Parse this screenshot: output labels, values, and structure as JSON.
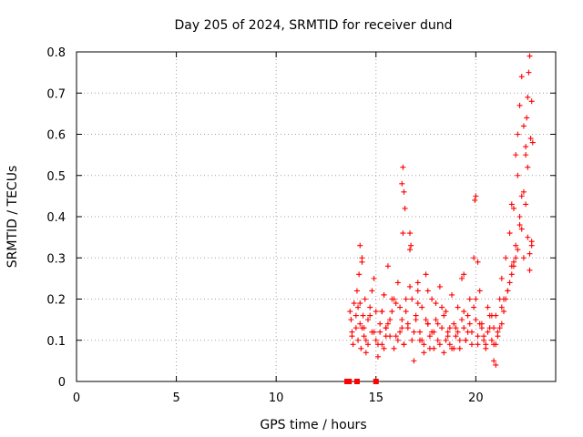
{
  "chart_data": {
    "type": "scatter",
    "title": "Day 205 of 2024, SRMTID for receiver dund",
    "xlabel": "GPS time / hours",
    "ylabel": "SRMTID / TECUs",
    "xlim": [
      0,
      24
    ],
    "ylim": [
      0,
      0.8
    ],
    "xticks": [
      0,
      5,
      10,
      15,
      20
    ],
    "xtick_labels": [
      "0",
      "5",
      "10",
      "15",
      "20"
    ],
    "yticks": [
      0,
      0.1,
      0.2,
      0.3,
      0.4,
      0.5,
      0.6,
      0.7,
      0.8
    ],
    "ytick_labels": [
      "0",
      "0.1",
      "0.2",
      "0.3",
      "0.4",
      "0.5",
      "0.6",
      "0.7",
      "0.8"
    ],
    "grid": true,
    "marker_color": "#ff0000",
    "zero_markers": {
      "marker": "square",
      "x": [
        13.55,
        13.65,
        14.05,
        15.0
      ]
    },
    "series": [
      {
        "name": "SRMTID",
        "marker": "plus",
        "x": [
          13.7,
          13.75,
          13.8,
          13.85,
          13.9,
          14.0,
          14.05,
          14.1,
          14.15,
          14.2,
          14.25,
          14.3,
          14.35,
          14.4,
          14.45,
          14.5,
          14.6,
          14.7,
          14.8,
          14.9,
          15.0,
          15.1,
          15.2,
          15.3,
          15.4,
          15.5,
          15.6,
          15.7,
          15.8,
          15.9,
          16.0,
          16.1,
          16.2,
          16.3,
          16.35,
          16.4,
          16.5,
          16.6,
          16.7,
          16.8,
          16.9,
          17.0,
          17.1,
          17.2,
          17.3,
          17.4,
          17.5,
          17.6,
          17.7,
          17.8,
          17.9,
          18.0,
          18.1,
          18.2,
          18.3,
          18.4,
          18.5,
          18.6,
          18.7,
          18.8,
          18.9,
          19.0,
          19.1,
          19.2,
          19.3,
          19.4,
          19.5,
          19.6,
          19.7,
          19.8,
          19.9,
          20.0,
          20.1,
          20.2,
          20.3,
          20.4,
          20.5,
          20.6,
          20.7,
          20.8,
          20.9,
          21.0,
          21.1,
          21.2,
          21.3,
          21.4,
          21.5,
          21.6,
          21.7,
          21.8,
          21.9,
          22.0,
          22.1,
          22.2,
          22.3,
          22.4,
          22.5,
          22.6,
          22.7,
          22.8,
          13.8,
          14.0,
          14.2,
          14.4,
          14.6,
          14.8,
          15.0,
          15.2,
          15.4,
          15.6,
          15.8,
          16.0,
          16.2,
          16.4,
          16.6,
          16.8,
          17.0,
          17.2,
          17.4,
          17.6,
          17.8,
          18.0,
          18.2,
          18.4,
          18.6,
          18.8,
          19.0,
          19.2,
          19.4,
          19.6,
          19.8,
          20.0,
          20.2,
          20.4,
          20.6,
          20.8,
          21.0,
          21.2,
          21.4,
          21.6,
          21.8,
          22.0,
          22.2,
          22.4,
          22.6,
          22.8,
          14.1,
          14.3,
          14.5,
          14.7,
          14.9,
          15.1,
          15.3,
          15.5,
          15.7,
          15.9,
          16.1,
          16.3,
          16.5,
          16.7,
          16.9,
          17.1,
          17.3,
          17.5,
          17.7,
          17.9,
          18.1,
          18.3,
          18.5,
          18.7,
          18.9,
          19.1,
          19.3,
          19.5,
          19.7,
          19.9,
          20.1,
          20.3,
          20.5,
          20.7,
          20.9,
          21.1,
          21.3,
          21.5,
          21.7,
          21.9,
          22.1,
          22.3,
          22.5,
          22.7,
          16.3,
          16.35,
          16.4,
          16.45,
          16.7,
          16.75,
          19.95,
          20.0,
          21.8,
          21.9,
          22.0,
          22.1,
          22.2,
          22.3,
          22.4,
          22.5,
          22.55,
          22.6,
          22.65,
          22.7,
          22.75,
          22.8,
          22.85,
          14.2,
          14.3,
          15.3,
          15.4,
          15.5,
          17.1,
          17.6,
          19.4,
          20.1,
          20.9,
          21.0,
          21.3
        ],
        "y": [
          0.17,
          0.15,
          0.12,
          0.09,
          0.19,
          0.13,
          0.22,
          0.1,
          0.26,
          0.14,
          0.08,
          0.3,
          0.16,
          0.11,
          0.2,
          0.07,
          0.15,
          0.18,
          0.12,
          0.25,
          0.1,
          0.06,
          0.14,
          0.09,
          0.21,
          0.13,
          0.28,
          0.11,
          0.17,
          0.08,
          0.19,
          0.24,
          0.12,
          0.15,
          0.36,
          0.09,
          0.2,
          0.14,
          0.32,
          0.1,
          0.05,
          0.16,
          0.22,
          0.12,
          0.18,
          0.09,
          0.26,
          0.14,
          0.11,
          0.2,
          0.08,
          0.15,
          0.1,
          0.23,
          0.13,
          0.07,
          0.17,
          0.12,
          0.09,
          0.21,
          0.14,
          0.11,
          0.18,
          0.08,
          0.25,
          0.13,
          0.1,
          0.16,
          0.2,
          0.12,
          0.3,
          0.15,
          0.09,
          0.22,
          0.14,
          0.11,
          0.08,
          0.18,
          0.13,
          0.1,
          0.05,
          0.16,
          0.12,
          0.2,
          0.25,
          0.17,
          0.3,
          0.22,
          0.36,
          0.28,
          0.42,
          0.33,
          0.5,
          0.38,
          0.45,
          0.3,
          0.55,
          0.35,
          0.27,
          0.34,
          0.11,
          0.16,
          0.19,
          0.13,
          0.09,
          0.22,
          0.17,
          0.12,
          0.08,
          0.14,
          0.2,
          0.11,
          0.18,
          0.09,
          0.13,
          0.2,
          0.15,
          0.1,
          0.07,
          0.14,
          0.12,
          0.19,
          0.09,
          0.16,
          0.11,
          0.08,
          0.13,
          0.1,
          0.17,
          0.12,
          0.09,
          0.2,
          0.14,
          0.1,
          0.12,
          0.16,
          0.09,
          0.13,
          0.2,
          0.22,
          0.26,
          0.3,
          0.4,
          0.46,
          0.52,
          0.33,
          0.18,
          0.13,
          0.1,
          0.16,
          0.12,
          0.09,
          0.17,
          0.11,
          0.15,
          0.2,
          0.1,
          0.13,
          0.17,
          0.23,
          0.12,
          0.19,
          0.1,
          0.15,
          0.08,
          0.12,
          0.14,
          0.18,
          0.1,
          0.13,
          0.08,
          0.12,
          0.15,
          0.1,
          0.14,
          0.18,
          0.11,
          0.13,
          0.09,
          0.16,
          0.13,
          0.11,
          0.18,
          0.2,
          0.24,
          0.28,
          0.32,
          0.37,
          0.43,
          0.31,
          0.48,
          0.52,
          0.46,
          0.42,
          0.36,
          0.33,
          0.44,
          0.45,
          0.43,
          0.29,
          0.55,
          0.6,
          0.67,
          0.74,
          0.62,
          0.57,
          0.64,
          0.69,
          0.75,
          0.79,
          0.59,
          0.68,
          0.58,
          0.33,
          0.29,
          0.17,
          0.21,
          0.13,
          0.24,
          0.22,
          0.26,
          0.29,
          0.09,
          0.04,
          0.14
        ]
      }
    ]
  }
}
